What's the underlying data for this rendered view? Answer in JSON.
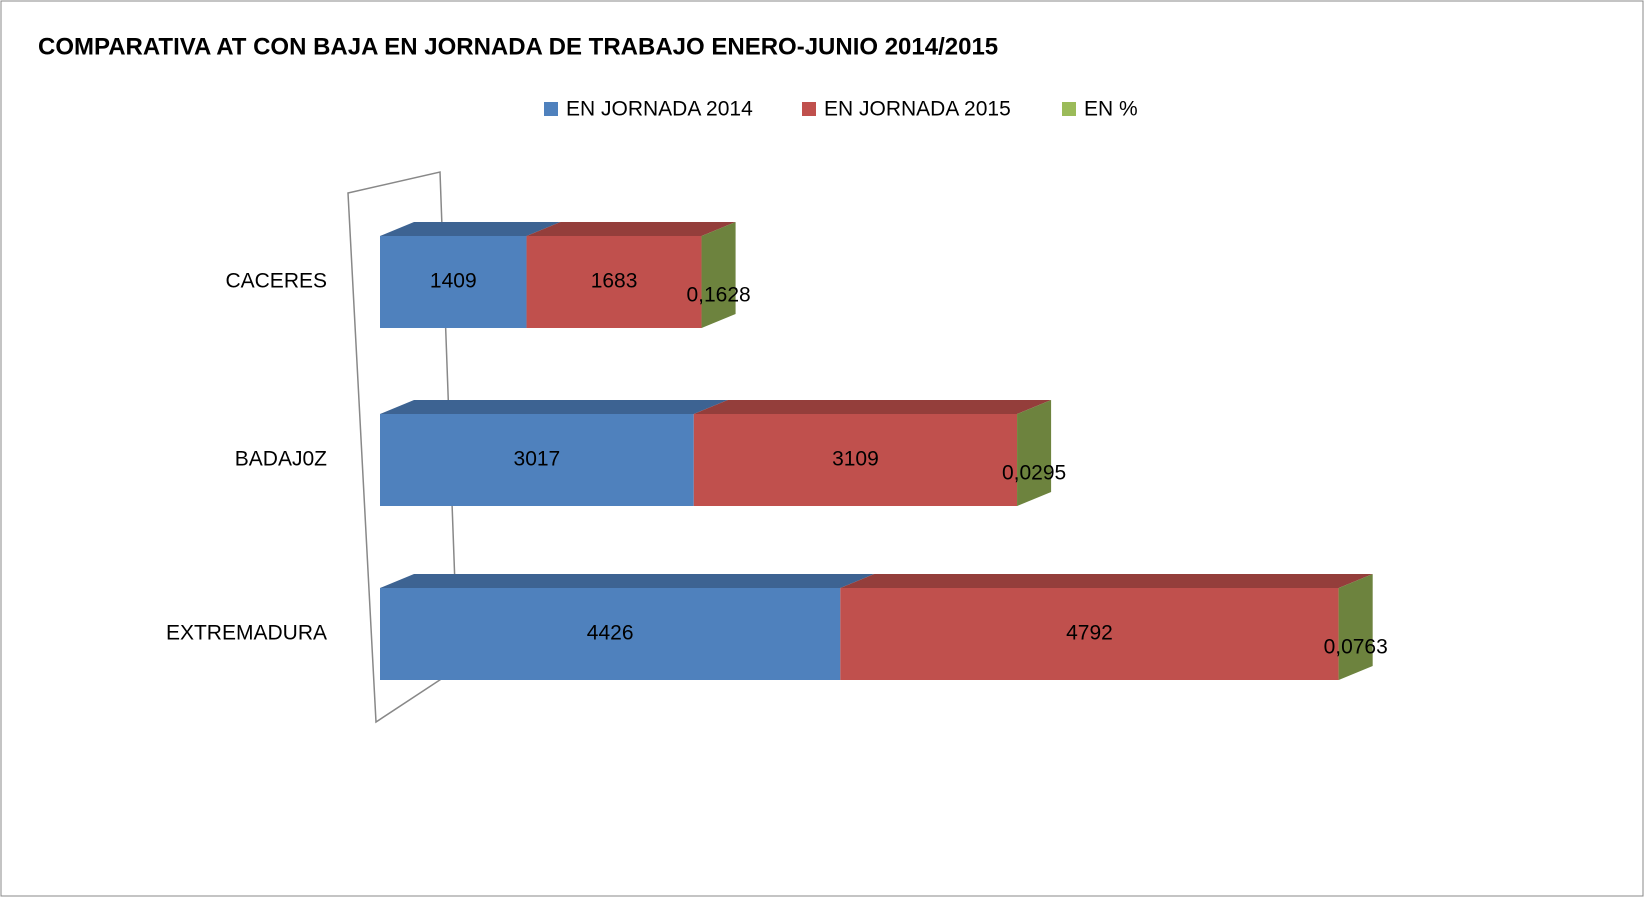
{
  "chart_data": {
    "type": "bar3d_stacked_horizontal",
    "title": "COMPARATIVA AT CON BAJA EN JORNADA DE TRABAJO ENERO-JUNIO 2014/2015",
    "categories": [
      "CACERES",
      "BADAJ0Z",
      "EXTREMADURA"
    ],
    "series": [
      {
        "name": "EN JORNADA 2014",
        "color": "#4f81bd",
        "values": [
          1409,
          3017,
          4426
        ]
      },
      {
        "name": "EN JORNADA 2015",
        "color": "#c0504d",
        "values": [
          1683,
          3109,
          4792
        ]
      },
      {
        "name": "EN %",
        "color": "#9bbb59",
        "values": [
          0.1628,
          0.0295,
          0.0763
        ],
        "value_labels": [
          "0,1628",
          "0,0295",
          "0,0763"
        ]
      }
    ],
    "legend": "top"
  }
}
